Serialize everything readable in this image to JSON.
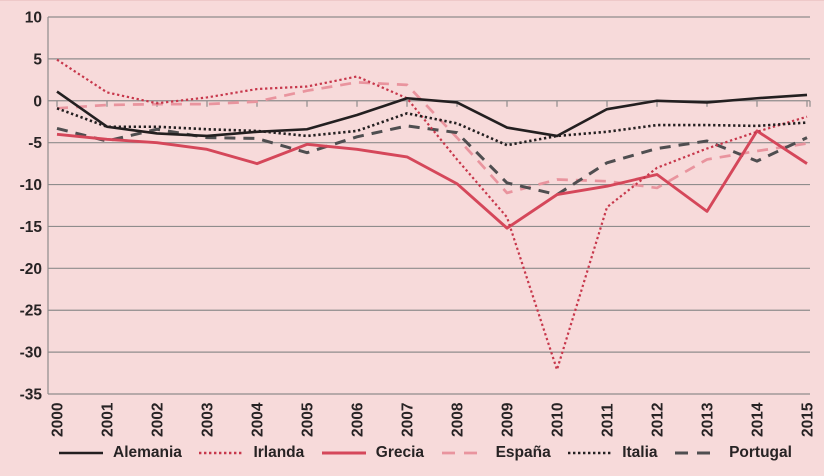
{
  "figure": {
    "background_color": "#f7dada",
    "grid_color": "#8f8c8c",
    "text_color": "#272324"
  },
  "axes": {
    "y_tick_labels": [
      "10",
      "5",
      "0",
      "-5",
      "-10",
      "-15",
      "-20",
      "-25",
      "-30",
      "-35"
    ],
    "x_tick_labels": [
      "2000",
      "2001",
      "2002",
      "2003",
      "2004",
      "2005",
      "2006",
      "2007",
      "2008",
      "2009",
      "2010",
      "2011",
      "2012",
      "2013",
      "2014",
      "2015"
    ]
  },
  "chart_data": {
    "type": "line",
    "x": [
      2000,
      2001,
      2002,
      2003,
      2004,
      2005,
      2006,
      2007,
      2008,
      2009,
      2010,
      2011,
      2012,
      2013,
      2014,
      2015
    ],
    "ylim": [
      -35,
      10
    ],
    "yticks": [
      10,
      5,
      0,
      -5,
      -10,
      -15,
      -20,
      -25,
      -30,
      -35
    ],
    "grid": "horizontal",
    "legend_position": "bottom",
    "title": "",
    "xlabel": "",
    "ylabel": "",
    "series": [
      {
        "name": "Alemania",
        "color": "#231f20",
        "style": "solid",
        "width": 2.6,
        "values": [
          1.1,
          -3.1,
          -3.9,
          -4.2,
          -3.7,
          -3.4,
          -1.7,
          0.3,
          -0.2,
          -3.2,
          -4.2,
          -1.0,
          0.0,
          -0.2,
          0.3,
          0.7
        ]
      },
      {
        "name": "Irlanda",
        "color": "#c7374b",
        "style": "dotted",
        "width": 2.2,
        "values": [
          4.9,
          1.0,
          -0.3,
          0.4,
          1.4,
          1.7,
          2.9,
          0.3,
          -7.0,
          -13.9,
          -32.1,
          -12.7,
          -8.0,
          -5.7,
          -3.7,
          -1.9
        ]
      },
      {
        "name": "Grecia",
        "color": "#d5475a",
        "style": "solid",
        "width": 2.9,
        "values": [
          -4.0,
          -4.6,
          -5.0,
          -5.8,
          -7.5,
          -5.2,
          -5.8,
          -6.7,
          -9.9,
          -15.2,
          -11.2,
          -10.2,
          -8.8,
          -13.2,
          -3.6,
          -7.5
        ]
      },
      {
        "name": "España",
        "color": "#e9949e",
        "style": "dashed",
        "width": 2.7,
        "values": [
          -0.9,
          -0.5,
          -0.4,
          -0.4,
          -0.1,
          1.2,
          2.2,
          1.9,
          -4.4,
          -11.0,
          -9.4,
          -9.6,
          -10.4,
          -7.0,
          -6.0,
          -5.1
        ]
      },
      {
        "name": "Italia",
        "color": "#231f20",
        "style": "dotted",
        "width": 2.6,
        "values": [
          -0.9,
          -3.1,
          -3.1,
          -3.4,
          -3.6,
          -4.2,
          -3.6,
          -1.5,
          -2.7,
          -5.3,
          -4.2,
          -3.7,
          -2.9,
          -2.9,
          -3.0,
          -2.6
        ]
      },
      {
        "name": "Portugal",
        "color": "#4f4e50",
        "style": "dashed",
        "width": 3.0,
        "values": [
          -3.3,
          -4.8,
          -3.4,
          -4.4,
          -4.5,
          -6.2,
          -4.3,
          -3.0,
          -3.8,
          -9.8,
          -11.2,
          -7.4,
          -5.7,
          -4.8,
          -7.2,
          -4.4
        ]
      }
    ]
  }
}
